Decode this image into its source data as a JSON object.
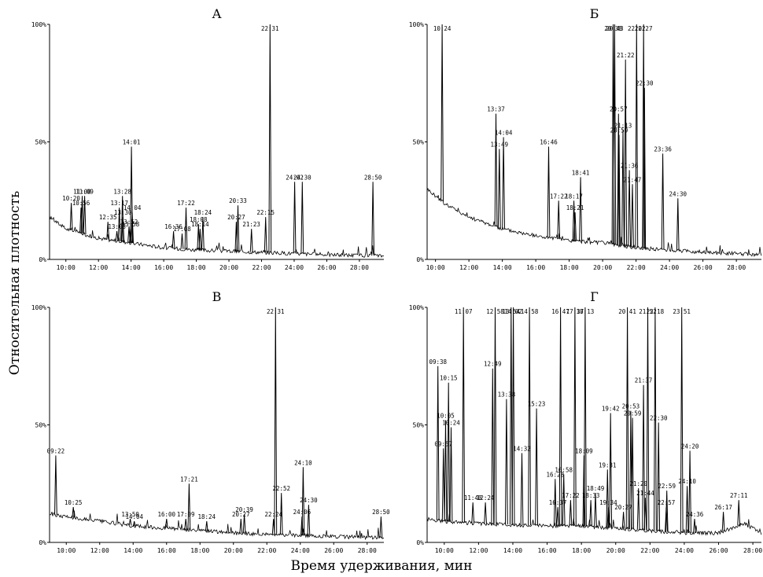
{
  "figure": {
    "ylabel": "Относительная плотность",
    "xlabel": "Время удерживания, мин"
  },
  "chart_data": [
    {
      "type": "line",
      "title": "А",
      "xlim": [
        9.0,
        29.5
      ],
      "ylim": [
        0,
        100
      ],
      "x_ticks": [
        "10:00",
        "12:00",
        "14:00",
        "16:00",
        "18:00",
        "20:00",
        "22:00",
        "24:00",
        "26:00",
        "28:00"
      ],
      "y_ticks": [
        "100%",
        "50%",
        "0%"
      ],
      "baseline": [
        [
          9.0,
          18
        ],
        [
          10,
          13
        ],
        [
          12,
          9
        ],
        [
          14,
          7
        ],
        [
          16,
          5
        ],
        [
          18,
          4
        ],
        [
          20,
          3.5
        ],
        [
          22,
          3
        ],
        [
          24,
          2.5
        ],
        [
          26,
          2
        ],
        [
          29.5,
          1.5
        ]
      ],
      "peaks": [
        {
          "label": "10:20",
          "x": 10.33,
          "y": 24
        },
        {
          "label": "10:56",
          "x": 10.93,
          "y": 22
        },
        {
          "label": "11:00",
          "x": 11.0,
          "y": 27
        },
        {
          "label": "11:09",
          "x": 11.15,
          "y": 27
        },
        {
          "label": "12:35",
          "x": 12.58,
          "y": 16
        },
        {
          "label": "13:17",
          "x": 13.28,
          "y": 22
        },
        {
          "label": "13:28",
          "x": 13.47,
          "y": 27
        },
        {
          "label": "13:30",
          "x": 13.5,
          "y": 18
        },
        {
          "label": "13:08",
          "x": 13.13,
          "y": 12
        },
        {
          "label": "13:52",
          "x": 13.87,
          "y": 14
        },
        {
          "label": "14:04",
          "x": 14.07,
          "y": 20
        },
        {
          "label": "13:58",
          "x": 13.97,
          "y": 13
        },
        {
          "label": "14:01",
          "x": 14.02,
          "y": 48
        },
        {
          "label": "16:36",
          "x": 16.6,
          "y": 12
        },
        {
          "label": "17:08",
          "x": 17.13,
          "y": 11
        },
        {
          "label": "17:22",
          "x": 17.37,
          "y": 22
        },
        {
          "label": "18:24",
          "x": 18.4,
          "y": 18
        },
        {
          "label": "18:08",
          "x": 18.13,
          "y": 15
        },
        {
          "label": "18:14",
          "x": 18.23,
          "y": 13
        },
        {
          "label": "20:33",
          "x": 20.55,
          "y": 23
        },
        {
          "label": "20:27",
          "x": 20.45,
          "y": 16
        },
        {
          "label": "21:23",
          "x": 21.38,
          "y": 13
        },
        {
          "label": "22:15",
          "x": 22.25,
          "y": 18
        },
        {
          "label": "22:31",
          "x": 22.52,
          "y": 100
        },
        {
          "label": "24:02",
          "x": 24.03,
          "y": 33
        },
        {
          "label": "24:30",
          "x": 24.5,
          "y": 33
        },
        {
          "label": "28:50",
          "x": 28.83,
          "y": 33
        }
      ]
    },
    {
      "type": "line",
      "title": "Б",
      "xlim": [
        9.5,
        29.5
      ],
      "ylim": [
        0,
        100
      ],
      "x_ticks": [
        "10:00",
        "12:00",
        "14:00",
        "16:00",
        "18:00",
        "20:00",
        "22:00",
        "24:00",
        "26:00",
        "28:00"
      ],
      "y_ticks": [
        "100%",
        "50%",
        "0%"
      ],
      "baseline": [
        [
          9.5,
          30
        ],
        [
          10.5,
          24
        ],
        [
          12,
          18
        ],
        [
          14,
          13
        ],
        [
          16,
          10
        ],
        [
          18,
          8
        ],
        [
          20,
          7
        ],
        [
          22,
          5
        ],
        [
          24,
          4
        ],
        [
          26,
          3
        ],
        [
          29.5,
          2
        ]
      ],
      "peaks": [
        {
          "label": "10:24",
          "x": 10.4,
          "y": 100
        },
        {
          "label": "13:37",
          "x": 13.62,
          "y": 62
        },
        {
          "label": "14:04",
          "x": 14.07,
          "y": 52
        },
        {
          "label": "13:49",
          "x": 13.82,
          "y": 47
        },
        {
          "label": "16:46",
          "x": 16.77,
          "y": 48
        },
        {
          "label": "17:22",
          "x": 17.37,
          "y": 25
        },
        {
          "label": "18:17",
          "x": 18.28,
          "y": 25
        },
        {
          "label": "18:21",
          "x": 18.35,
          "y": 20
        },
        {
          "label": "18:41",
          "x": 18.68,
          "y": 35
        },
        {
          "label": "20:38",
          "x": 20.63,
          "y": 100
        },
        {
          "label": "20:43",
          "x": 20.72,
          "y": 100
        },
        {
          "label": "20:57",
          "x": 20.95,
          "y": 62
        },
        {
          "label": "20:59",
          "x": 20.98,
          "y": 53
        },
        {
          "label": "21:13",
          "x": 21.22,
          "y": 55
        },
        {
          "label": "21:22",
          "x": 21.37,
          "y": 85
        },
        {
          "label": "21:36",
          "x": 21.6,
          "y": 38
        },
        {
          "label": "21:47",
          "x": 21.78,
          "y": 32
        },
        {
          "label": "22:02",
          "x": 22.03,
          "y": 100
        },
        {
          "label": "22:27",
          "x": 22.45,
          "y": 100
        },
        {
          "label": "22:30",
          "x": 22.5,
          "y": 73
        },
        {
          "label": "23:36",
          "x": 23.6,
          "y": 45
        },
        {
          "label": "24:30",
          "x": 24.5,
          "y": 26
        }
      ]
    },
    {
      "type": "line",
      "title": "В",
      "xlim": [
        9.0,
        29.0
      ],
      "ylim": [
        0,
        100
      ],
      "x_ticks": [
        "10:00",
        "12:00",
        "14:00",
        "16:00",
        "18:00",
        "20:00",
        "22:00",
        "24:00",
        "26:00",
        "28:00"
      ],
      "y_ticks": [
        "100%",
        "50%",
        "0%"
      ],
      "baseline": [
        [
          9.0,
          12
        ],
        [
          10,
          11
        ],
        [
          12,
          9
        ],
        [
          14,
          7
        ],
        [
          16,
          6
        ],
        [
          18,
          5
        ],
        [
          20,
          4
        ],
        [
          22,
          3.5
        ],
        [
          24,
          3
        ],
        [
          26,
          2.5
        ],
        [
          29,
          2
        ]
      ],
      "peaks": [
        {
          "label": "09:22",
          "x": 9.37,
          "y": 37
        },
        {
          "label": "10:25",
          "x": 10.42,
          "y": 15
        },
        {
          "label": "13:50",
          "x": 13.83,
          "y": 10
        },
        {
          "label": "14:04",
          "x": 14.07,
          "y": 9
        },
        {
          "label": "16:00",
          "x": 16.0,
          "y": 10
        },
        {
          "label": "17:09",
          "x": 17.15,
          "y": 10
        },
        {
          "label": "17:21",
          "x": 17.35,
          "y": 25
        },
        {
          "label": "18:24",
          "x": 18.4,
          "y": 9
        },
        {
          "label": "20:27",
          "x": 20.45,
          "y": 10
        },
        {
          "label": "20:39",
          "x": 20.65,
          "y": 12
        },
        {
          "label": "22:24",
          "x": 22.4,
          "y": 10
        },
        {
          "label": "22:31",
          "x": 22.52,
          "y": 100
        },
        {
          "label": "22:52",
          "x": 22.87,
          "y": 21
        },
        {
          "label": "24:10",
          "x": 24.17,
          "y": 32
        },
        {
          "label": "24:06",
          "x": 24.1,
          "y": 11
        },
        {
          "label": "24:30",
          "x": 24.5,
          "y": 16
        },
        {
          "label": "28:50",
          "x": 28.83,
          "y": 11
        }
      ]
    },
    {
      "type": "line",
      "title": "Г",
      "xlim": [
        9.0,
        28.5
      ],
      "ylim": [
        0,
        100
      ],
      "x_ticks": [
        "10:00",
        "12:00",
        "14:00",
        "16:00",
        "18:00",
        "20:00",
        "22:00",
        "24:00",
        "26:00",
        "28:00"
      ],
      "y_ticks": [
        "100%",
        "50%",
        "0%"
      ],
      "baseline": [
        [
          9.0,
          10
        ],
        [
          10,
          9
        ],
        [
          12,
          8
        ],
        [
          14,
          7.5
        ],
        [
          16,
          7
        ],
        [
          18,
          7
        ],
        [
          20,
          6
        ],
        [
          22,
          5
        ],
        [
          24,
          4
        ],
        [
          26,
          4
        ],
        [
          27.5,
          8
        ],
        [
          28.5,
          4
        ]
      ],
      "peaks": [
        {
          "label": "09:38",
          "x": 9.63,
          "y": 75
        },
        {
          "label": "09:57",
          "x": 9.95,
          "y": 40
        },
        {
          "label": "10:05",
          "x": 10.08,
          "y": 52
        },
        {
          "label": "10:15",
          "x": 10.25,
          "y": 68
        },
        {
          "label": "10:24",
          "x": 10.4,
          "y": 49
        },
        {
          "label": "11:07",
          "x": 11.12,
          "y": 100
        },
        {
          "label": "11:40",
          "x": 11.67,
          "y": 17
        },
        {
          "label": "12:24",
          "x": 12.4,
          "y": 17
        },
        {
          "label": "12:49",
          "x": 12.82,
          "y": 74
        },
        {
          "label": "12:58",
          "x": 12.97,
          "y": 100
        },
        {
          "label": "13:38",
          "x": 13.63,
          "y": 61
        },
        {
          "label": "13:54",
          "x": 13.9,
          "y": 100
        },
        {
          "label": "14:02",
          "x": 14.03,
          "y": 100
        },
        {
          "label": "14:32",
          "x": 14.53,
          "y": 38
        },
        {
          "label": "14:58",
          "x": 14.97,
          "y": 100
        },
        {
          "label": "15:23",
          "x": 15.38,
          "y": 57
        },
        {
          "label": "16:28",
          "x": 16.47,
          "y": 27
        },
        {
          "label": "16:58",
          "x": 16.97,
          "y": 29
        },
        {
          "label": "16:37",
          "x": 16.62,
          "y": 15
        },
        {
          "label": "16:47",
          "x": 16.78,
          "y": 100
        },
        {
          "label": "17:22",
          "x": 17.37,
          "y": 18
        },
        {
          "label": "17:37",
          "x": 17.62,
          "y": 100
        },
        {
          "label": "18:09",
          "x": 18.15,
          "y": 37
        },
        {
          "label": "18:13",
          "x": 18.22,
          "y": 100
        },
        {
          "label": "18:33",
          "x": 18.55,
          "y": 18
        },
        {
          "label": "18:49",
          "x": 18.82,
          "y": 21
        },
        {
          "label": "19:31",
          "x": 19.52,
          "y": 31
        },
        {
          "label": "19:34",
          "x": 19.57,
          "y": 15
        },
        {
          "label": "19:42",
          "x": 19.7,
          "y": 55
        },
        {
          "label": "20:27",
          "x": 20.45,
          "y": 13
        },
        {
          "label": "20:41",
          "x": 20.68,
          "y": 100
        },
        {
          "label": "20:53",
          "x": 20.88,
          "y": 56
        },
        {
          "label": "20:59",
          "x": 20.98,
          "y": 53
        },
        {
          "label": "21:20",
          "x": 21.33,
          "y": 23
        },
        {
          "label": "21:37",
          "x": 21.62,
          "y": 67
        },
        {
          "label": "21:44",
          "x": 21.73,
          "y": 19
        },
        {
          "label": "21:52",
          "x": 21.87,
          "y": 100
        },
        {
          "label": "22:18",
          "x": 22.3,
          "y": 100
        },
        {
          "label": "22:30",
          "x": 22.5,
          "y": 51
        },
        {
          "label": "22:57",
          "x": 22.95,
          "y": 15
        },
        {
          "label": "22:59",
          "x": 22.98,
          "y": 22
        },
        {
          "label": "23:51",
          "x": 23.85,
          "y": 100
        },
        {
          "label": "24:10",
          "x": 24.17,
          "y": 24
        },
        {
          "label": "24:20",
          "x": 24.33,
          "y": 39
        },
        {
          "label": "24:36",
          "x": 24.6,
          "y": 10
        },
        {
          "label": "26:17",
          "x": 26.28,
          "y": 13
        },
        {
          "label": "27:11",
          "x": 27.18,
          "y": 18
        }
      ]
    }
  ]
}
